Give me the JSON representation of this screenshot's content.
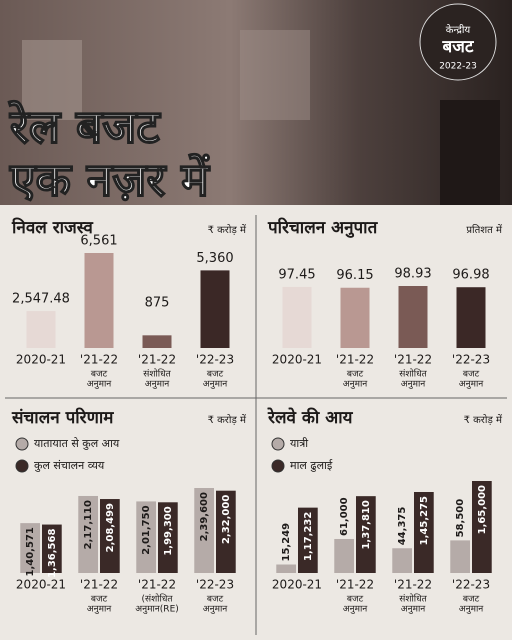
{
  "header": {
    "title_lines": [
      "रेल बजट",
      "एक नज़र में"
    ],
    "badge_lines": [
      "केन्द्रीय",
      "बजट",
      "2022-23"
    ]
  },
  "chart_data": [
    {
      "type": "bar",
      "title": "निवल राजस्व",
      "unit": "₹ करोड़ में",
      "categories": [
        [
          "2020-21"
        ],
        [
          "'21-22",
          "बजट",
          "अनुमान"
        ],
        [
          "'21-22",
          "संशोधित",
          "अनुमान"
        ],
        [
          "'22-23",
          "बजट",
          "अनुमान"
        ]
      ],
      "values": [
        2547.48,
        6561,
        875,
        5360
      ],
      "value_labels": [
        "2,547.48",
        "6,561",
        "875",
        "5,360"
      ],
      "colors": [
        "#e6d9d5",
        "#b99892",
        "#7a5a55",
        "#3b2826"
      ]
    },
    {
      "type": "bar",
      "title": "परिचालन अनुपात",
      "unit": "प्रतिशत में",
      "categories": [
        [
          "2020-21"
        ],
        [
          "'21-22",
          "बजट",
          "अनुमान"
        ],
        [
          "'21-22",
          "संशोधित",
          "अनुमान"
        ],
        [
          "'22-23",
          "बजट",
          "अनुमान"
        ]
      ],
      "values": [
        97.45,
        96.15,
        98.93,
        96.98
      ],
      "colors": [
        "#e6d9d5",
        "#b99892",
        "#7a5a55",
        "#3b2826"
      ]
    },
    {
      "type": "bar",
      "title": "संचालन परिणाम",
      "unit": "₹ करोड़ में",
      "categories": [
        [
          "2020-21"
        ],
        [
          "'21-22",
          "बजट",
          "अनुमान"
        ],
        [
          "'21-22",
          "(संशोधित",
          "अनुमान(RE)"
        ],
        [
          "'22-23",
          "बजट",
          "अनुमान"
        ]
      ],
      "series": [
        {
          "name": "यातायात से कुल आय",
          "color": "#b5aba8",
          "values": [
            140571,
            217110,
            201750,
            239600
          ],
          "value_labels": [
            "1,40,571",
            "2,17,110",
            "2,01,750",
            "2,39,600"
          ]
        },
        {
          "name": "कुल संचालन व्यय",
          "color": "#3a2927",
          "values": [
            136568,
            208499,
            199300,
            232000
          ],
          "value_labels": [
            "1,36,568",
            "2,08,499",
            "1,99,300",
            "2,32,000"
          ]
        }
      ]
    },
    {
      "type": "bar",
      "title": "रेलवे की आय",
      "unit": "₹ करोड़ में",
      "categories": [
        [
          "2020-21"
        ],
        [
          "'21-22",
          "बजट",
          "अनुमान"
        ],
        [
          "'21-22",
          "संशोधित",
          "अनुमान"
        ],
        [
          "'22-23",
          "बजट",
          "अनुमान"
        ]
      ],
      "series": [
        {
          "name": "यात्री",
          "color": "#b5aba8",
          "values": [
            15249,
            61000,
            44375,
            58500
          ],
          "value_labels": [
            "15,249",
            "61,000",
            "44,375",
            "58,500"
          ]
        },
        {
          "name": "माल ढुलाई",
          "color": "#3a2927",
          "values": [
            117232,
            137810,
            145275,
            165000
          ],
          "value_labels": [
            "1,17,232",
            "1,37,810",
            "1,45,275",
            "1,65,000"
          ]
        }
      ]
    }
  ]
}
